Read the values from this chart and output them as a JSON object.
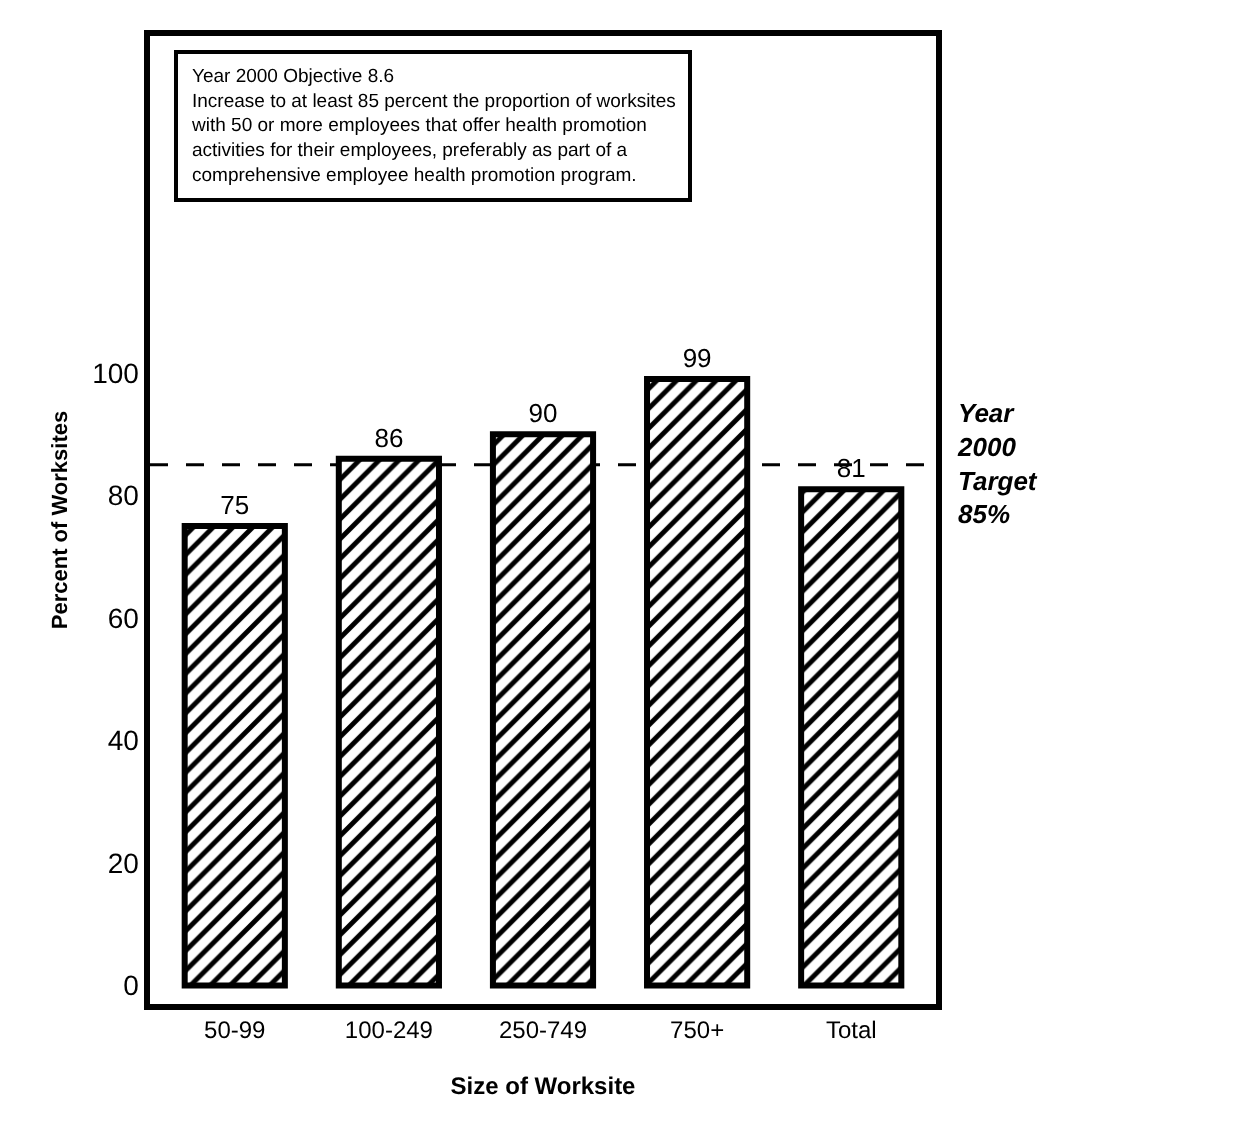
{
  "chart_data": {
    "type": "bar",
    "categories": [
      "50-99",
      "100-249",
      "250-749",
      "750+",
      "Total"
    ],
    "values": [
      75,
      86,
      90,
      99,
      81
    ],
    "color": "#000000",
    "data_labels": true,
    "xlabel": "Size of Worksite",
    "ylabel": "Percent of Worksites",
    "ylim": [
      -3,
      155
    ],
    "yticks": [
      0,
      20,
      40,
      60,
      80,
      100
    ],
    "grid": false,
    "ref_lines": [
      {
        "axis": "y",
        "value": 85,
        "label": "Year 2000 Target 85%",
        "line_style": "dashed",
        "color": "#000000"
      }
    ],
    "annotations": [
      "Year 2000 Objective 8.6",
      "Increase to at least 85 percent the proportion of worksites with 50 or more employees that offer health promotion activities for their employees, preferably as part of a comprehensive employee health promotion program."
    ]
  }
}
